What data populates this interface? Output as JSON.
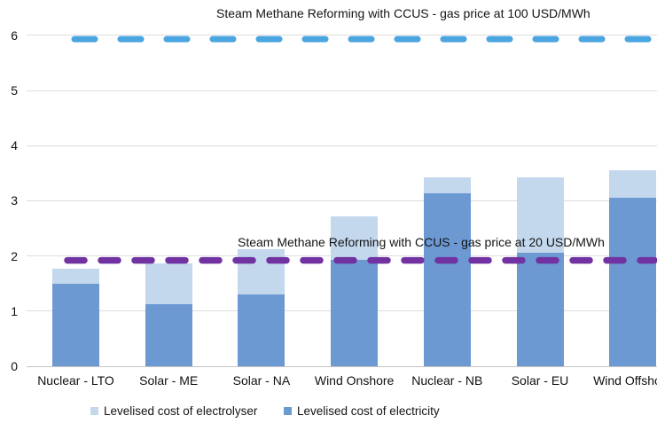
{
  "chart_data": {
    "type": "bar",
    "stacked": true,
    "title": "",
    "xlabel": "",
    "ylabel": "",
    "ylim": [
      0,
      6
    ],
    "yticks": [
      "0",
      "1",
      "2",
      "3",
      "4",
      "5",
      "6"
    ],
    "grid": true,
    "legend_position": "bottom",
    "categories": [
      "Nuclear - LTO",
      "Solar - ME",
      "Solar - NA",
      "Wind Onshore",
      "Nuclear - NB",
      "Solar - EU",
      "Wind Offshore"
    ],
    "series": [
      {
        "name": "Levelised cost of electrolyser",
        "color": "#c3d7ed",
        "stack_position": "top",
        "values": [
          0.27,
          0.74,
          0.82,
          0.79,
          0.29,
          1.36,
          0.5
        ]
      },
      {
        "name": "Levelised cost of electricity",
        "color": "#6d99d3",
        "stack_position": "bottom",
        "values": [
          1.5,
          1.12,
          1.3,
          1.93,
          3.13,
          2.06,
          3.06
        ]
      }
    ],
    "stack_totals": [
      1.77,
      1.86,
      2.12,
      2.72,
      3.42,
      3.42,
      3.56
    ],
    "reference_lines": [
      {
        "label": "Steam Methane Reforming with CCUS - gas price at 100 USD/MWh",
        "value": 5.93,
        "color": "#4aa5e0",
        "style": "dashed"
      },
      {
        "label": "Steam Methane Reforming with CCUS - gas price at 20 USD/MWh",
        "value": 1.92,
        "color": "#7233a2",
        "style": "dashed"
      }
    ]
  },
  "legend": {
    "items": [
      {
        "label": "Levelised cost of electrolyser",
        "color": "#c3d7ed"
      },
      {
        "label": "Levelised cost of electricity",
        "color": "#6d99d3"
      }
    ]
  }
}
